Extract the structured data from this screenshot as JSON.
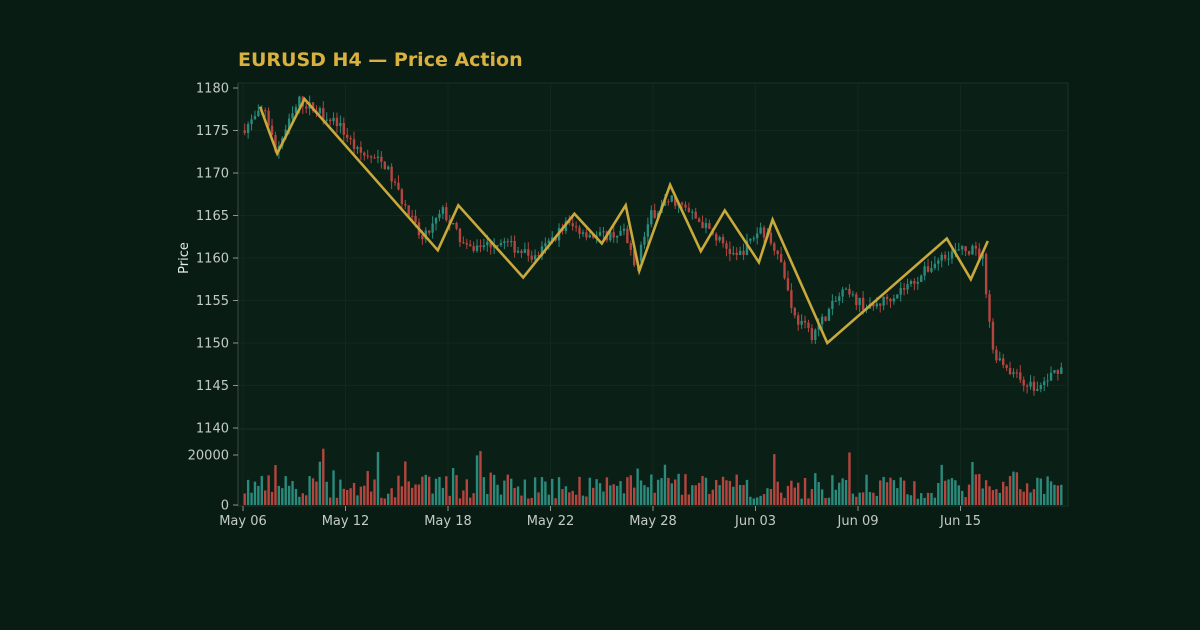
{
  "chart_data": {
    "type": "candlestick",
    "title": "EURUSD H4 — Price Action",
    "ylabel": "Price",
    "ylim": [
      1140,
      1180
    ],
    "yticks": [
      1140,
      1145,
      1150,
      1155,
      1160,
      1165,
      1170,
      1175,
      1180
    ],
    "volume_ylim": [
      0,
      30000
    ],
    "volume_yticks": [
      0,
      20000
    ],
    "x_range": [
      0,
      240
    ],
    "xticks": [
      {
        "x": 0,
        "label": "May 06"
      },
      {
        "x": 30,
        "label": "May 12"
      },
      {
        "x": 60,
        "label": "May 18"
      },
      {
        "x": 90,
        "label": "May 22"
      },
      {
        "x": 120,
        "label": "May 28"
      },
      {
        "x": 150,
        "label": "Jun 03"
      },
      {
        "x": 180,
        "label": "Jun 09"
      },
      {
        "x": 210,
        "label": "Jun 15"
      }
    ],
    "anchors": [
      {
        "x": 0,
        "y": 1175
      },
      {
        "x": 7,
        "y": 1177.5
      },
      {
        "x": 10,
        "y": 1172.5
      },
      {
        "x": 17,
        "y": 1178.5
      },
      {
        "x": 28,
        "y": 1176
      },
      {
        "x": 34,
        "y": 1172.5
      },
      {
        "x": 42,
        "y": 1171
      },
      {
        "x": 48,
        "y": 1166
      },
      {
        "x": 53,
        "y": 1162
      },
      {
        "x": 59,
        "y": 1165.5
      },
      {
        "x": 66,
        "y": 1161
      },
      {
        "x": 76,
        "y": 1162
      },
      {
        "x": 86,
        "y": 1160
      },
      {
        "x": 95,
        "y": 1164
      },
      {
        "x": 104,
        "y": 1162.5
      },
      {
        "x": 112,
        "y": 1163
      },
      {
        "x": 115,
        "y": 1159
      },
      {
        "x": 120,
        "y": 1165
      },
      {
        "x": 126,
        "y": 1167
      },
      {
        "x": 135,
        "y": 1164
      },
      {
        "x": 145,
        "y": 1160
      },
      {
        "x": 152,
        "y": 1163.5
      },
      {
        "x": 157,
        "y": 1161
      },
      {
        "x": 162,
        "y": 1153
      },
      {
        "x": 167,
        "y": 1151
      },
      {
        "x": 176,
        "y": 1156
      },
      {
        "x": 184,
        "y": 1154
      },
      {
        "x": 196,
        "y": 1157
      },
      {
        "x": 206,
        "y": 1160.5
      },
      {
        "x": 214,
        "y": 1161
      },
      {
        "x": 217,
        "y": 1160
      },
      {
        "x": 220,
        "y": 1149
      },
      {
        "x": 227,
        "y": 1146
      },
      {
        "x": 233,
        "y": 1144.5
      },
      {
        "x": 239,
        "y": 1147
      }
    ],
    "zigzag": [
      {
        "x": 5,
        "y": 1177.8
      },
      {
        "x": 10,
        "y": 1172.3
      },
      {
        "x": 18,
        "y": 1178.7
      },
      {
        "x": 57,
        "y": 1160.9
      },
      {
        "x": 63,
        "y": 1166.2
      },
      {
        "x": 82,
        "y": 1157.7
      },
      {
        "x": 97,
        "y": 1165.2
      },
      {
        "x": 105,
        "y": 1161.7
      },
      {
        "x": 112,
        "y": 1166.2
      },
      {
        "x": 116,
        "y": 1158.5
      },
      {
        "x": 125,
        "y": 1168.6
      },
      {
        "x": 134,
        "y": 1160.8
      },
      {
        "x": 141,
        "y": 1165.6
      },
      {
        "x": 151,
        "y": 1159.5
      },
      {
        "x": 155,
        "y": 1164.5
      },
      {
        "x": 171,
        "y": 1150
      },
      {
        "x": 206,
        "y": 1162.3
      },
      {
        "x": 213,
        "y": 1157.5
      },
      {
        "x": 218,
        "y": 1162
      }
    ],
    "series_colors": {
      "up": "#2a8a7c",
      "down": "#b5453f",
      "zigzag": "#c9a83c",
      "title": "#d9b13f"
    },
    "grid": true
  }
}
